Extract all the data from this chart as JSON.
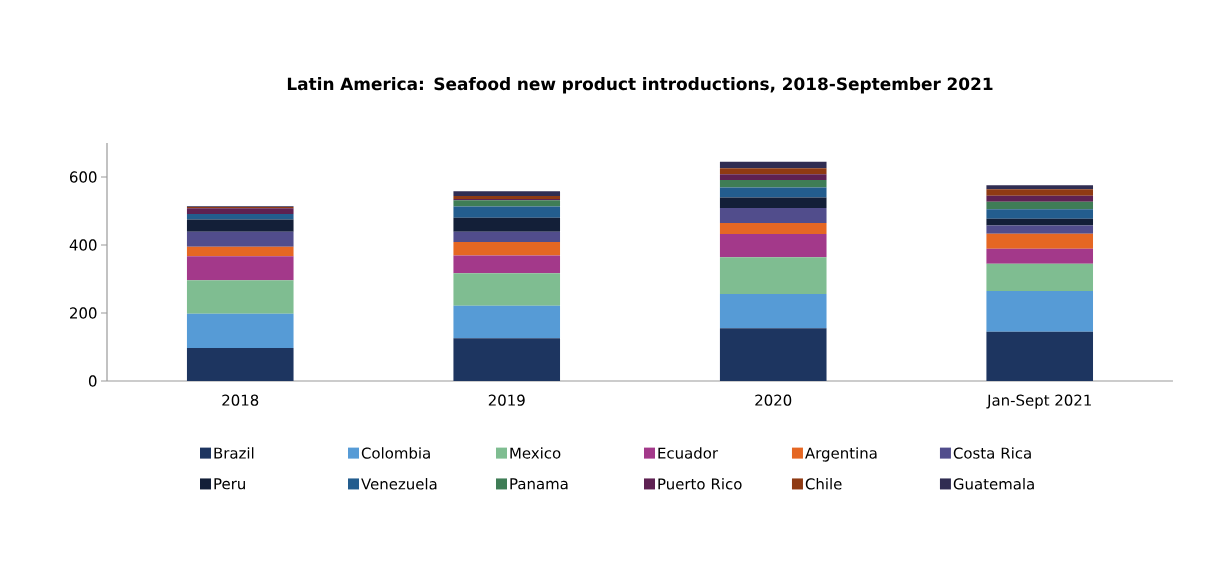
{
  "chart_data": {
    "type": "bar",
    "stacked": true,
    "title": "Latin America: Seafood new product introductions, 2018-September 2021",
    "categories": [
      "2018",
      "2019",
      "2020",
      "Jan-Sept 2021"
    ],
    "series": [
      {
        "name": "Brazil",
        "color": "#1d3560",
        "values": [
          97,
          126,
          155,
          145
        ]
      },
      {
        "name": "Colombia",
        "color": "#569bd6",
        "values": [
          101,
          95,
          101,
          120
        ]
      },
      {
        "name": "Mexico",
        "color": "#7fbd91",
        "values": [
          98,
          96,
          108,
          80
        ]
      },
      {
        "name": "Ecuador",
        "color": "#a3398a",
        "values": [
          71,
          52,
          68,
          44
        ]
      },
      {
        "name": "Argentina",
        "color": "#e56723",
        "values": [
          28,
          40,
          33,
          44
        ]
      },
      {
        "name": "Costa Rica",
        "color": "#514d8c",
        "values": [
          44,
          30,
          44,
          24
        ]
      },
      {
        "name": "Peru",
        "color": "#131f38",
        "values": [
          36,
          41,
          31,
          20
        ]
      },
      {
        "name": "Venezuela",
        "color": "#235d8e",
        "values": [
          16,
          33,
          29,
          28
        ]
      },
      {
        "name": "Panama",
        "color": "#3f7d56",
        "values": [
          null,
          19,
          22,
          22
        ]
      },
      {
        "name": "Puerto Rico",
        "color": "#5e2152",
        "values": [
          17,
          3,
          17,
          18
        ]
      },
      {
        "name": "Chile",
        "color": "#8f3a13",
        "values": [
          4,
          9,
          18,
          19
        ]
      },
      {
        "name": "Guatemala",
        "color": "#302d52",
        "values": [
          2,
          14,
          19,
          12
        ]
      }
    ],
    "ylim": [
      0,
      700
    ],
    "yticks": [
      0,
      200,
      400,
      600
    ],
    "grid": false,
    "legend": "bottom"
  }
}
